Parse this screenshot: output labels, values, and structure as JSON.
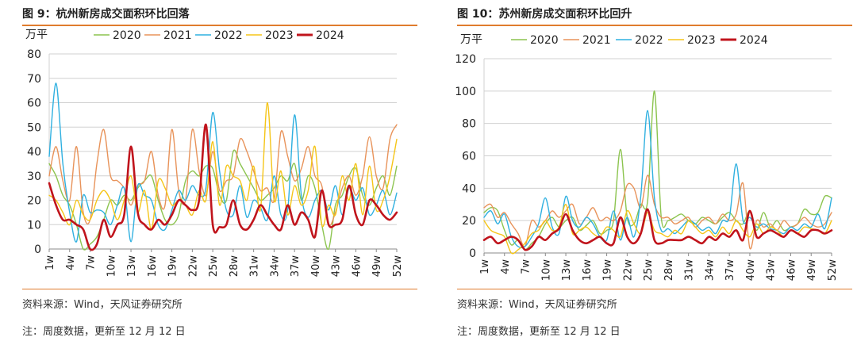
{
  "figures": [
    {
      "title": "图 9：杭州新房成交面积环比回落",
      "source": "资料来源：Wind，天风证券研究所",
      "note": "注：周度数据，更新至 12 月 12 日"
    },
    {
      "title": "图 10：苏州新房成交面积环比回升",
      "source": "资料来源：Wind，天风证券研究所",
      "note": "注：周度数据，更新至 12 月 12 日"
    }
  ],
  "colors": {
    "2020": "#8cc44f",
    "2021": "#e8935a",
    "2022": "#2fb0e0",
    "2023": "#f5c518",
    "2024": "#c0141c",
    "rule": "#e07c2e",
    "grid": "#d0d0d0"
  },
  "chart_data": [
    {
      "type": "line",
      "unit_label": "万平",
      "ylim": [
        0,
        80
      ],
      "yticks": [
        0,
        10,
        20,
        30,
        40,
        50,
        60,
        70,
        80
      ],
      "grid": true,
      "legend_position": "top",
      "xticks": [
        "1w",
        "4w",
        "7w",
        "10w",
        "13w",
        "16w",
        "19w",
        "22w",
        "25w",
        "28w",
        "31w",
        "34w",
        "37w",
        "40w",
        "43w",
        "46w",
        "49w",
        "52w"
      ],
      "x": [
        1,
        2,
        3,
        4,
        5,
        6,
        7,
        8,
        9,
        10,
        11,
        12,
        13,
        14,
        15,
        16,
        17,
        18,
        19,
        20,
        21,
        22,
        23,
        24,
        25,
        26,
        27,
        28,
        29,
        30,
        31,
        32,
        33,
        34,
        35,
        36,
        37,
        38,
        39,
        40,
        41,
        42,
        43,
        44,
        45,
        46,
        47,
        48,
        49,
        50,
        51,
        52
      ],
      "series": [
        {
          "name": "2020",
          "values": [
            35,
            30,
            22,
            18,
            10,
            0,
            2,
            5,
            12,
            20,
            18,
            22,
            20,
            25,
            28,
            30,
            20,
            12,
            10,
            14,
            28,
            32,
            30,
            34,
            33,
            22,
            20,
            40,
            35,
            30,
            25,
            20,
            22,
            25,
            30,
            28,
            35,
            20,
            30,
            25,
            10,
            0,
            18,
            22,
            30,
            33,
            22,
            18,
            25,
            30,
            22,
            34
          ]
        },
        {
          "name": "2021",
          "values": [
            30,
            42,
            28,
            20,
            42,
            15,
            12,
            35,
            49,
            30,
            28,
            25,
            18,
            26,
            28,
            40,
            22,
            18,
            49,
            24,
            20,
            49,
            32,
            22,
            40,
            24,
            28,
            30,
            45,
            40,
            32,
            24,
            25,
            20,
            48,
            38,
            28,
            33,
            42,
            30,
            26,
            10,
            15,
            25,
            30,
            22,
            30,
            46,
            30,
            25,
            45,
            51
          ]
        },
        {
          "name": "2022",
          "values": [
            38,
            68,
            35,
            15,
            3,
            22,
            15,
            16,
            15,
            10,
            18,
            25,
            3,
            26,
            22,
            20,
            10,
            8,
            16,
            24,
            20,
            26,
            22,
            25,
            56,
            32,
            16,
            14,
            26,
            13,
            20,
            17,
            12,
            30,
            14,
            16,
            55,
            22,
            13,
            20,
            24,
            16,
            26,
            14,
            25,
            20,
            25,
            14,
            18,
            24,
            14,
            23
          ]
        },
        {
          "name": "2023",
          "values": [
            22,
            20,
            15,
            10,
            20,
            14,
            12,
            20,
            24,
            20,
            12,
            20,
            30,
            15,
            24,
            8,
            28,
            25,
            18,
            20,
            18,
            14,
            24,
            20,
            44,
            18,
            34,
            30,
            28,
            20,
            34,
            16,
            60,
            20,
            32,
            14,
            26,
            18,
            24,
            42,
            10,
            18,
            14,
            30,
            20,
            35,
            14,
            34,
            16,
            20,
            30,
            45
          ]
        },
        {
          "name": "2024",
          "values": [
            27,
            18,
            12,
            12,
            10,
            8,
            0,
            2,
            12,
            5,
            10,
            14,
            42,
            15,
            10,
            8,
            12,
            10,
            14,
            20,
            18,
            16,
            20,
            51,
            10,
            9,
            10,
            20,
            10,
            8,
            12,
            18,
            14,
            10,
            8,
            18,
            10,
            15,
            12,
            5,
            24,
            10,
            10,
            12,
            26,
            14,
            10,
            20,
            18,
            14,
            12,
            15
          ]
        }
      ]
    },
    {
      "type": "line",
      "unit_label": "万平",
      "ylim": [
        0,
        120
      ],
      "yticks": [
        0,
        20,
        40,
        60,
        80,
        100,
        120
      ],
      "grid": true,
      "legend_position": "top",
      "xticks": [
        "1w",
        "4w",
        "7w",
        "10w",
        "13w",
        "16w",
        "19w",
        "22w",
        "25w",
        "28w",
        "31w",
        "34w",
        "37w",
        "40w",
        "43w",
        "46w",
        "49w",
        "52w"
      ],
      "x": [
        1,
        2,
        3,
        4,
        5,
        6,
        7,
        8,
        9,
        10,
        11,
        12,
        13,
        14,
        15,
        16,
        17,
        18,
        19,
        20,
        21,
        22,
        23,
        24,
        25,
        26,
        27,
        28,
        29,
        30,
        31,
        32,
        33,
        34,
        35,
        36,
        37,
        38,
        39,
        40,
        41,
        42,
        43,
        44,
        45,
        46,
        47,
        48,
        49,
        50,
        51,
        52
      ],
      "series": [
        {
          "name": "2020",
          "values": [
            25,
            28,
            26,
            14,
            5,
            8,
            2,
            6,
            10,
            18,
            22,
            16,
            20,
            22,
            14,
            17,
            20,
            12,
            14,
            20,
            64,
            22,
            18,
            30,
            32,
            100,
            22,
            20,
            22,
            24,
            20,
            18,
            22,
            20,
            18,
            22,
            25,
            20,
            18,
            26,
            14,
            25,
            16,
            20,
            14,
            16,
            18,
            27,
            24,
            25,
            35,
            34
          ]
        },
        {
          "name": "2021",
          "values": [
            28,
            30,
            22,
            25,
            18,
            12,
            4,
            20,
            16,
            20,
            26,
            22,
            26,
            30,
            18,
            22,
            28,
            20,
            22,
            20,
            26,
            42,
            40,
            28,
            48,
            30,
            22,
            22,
            18,
            20,
            22,
            16,
            20,
            22,
            18,
            24,
            20,
            24,
            43,
            3,
            20,
            16,
            18,
            14,
            20,
            16,
            18,
            22,
            18,
            16,
            18,
            25
          ]
        },
        {
          "name": "2022",
          "values": [
            22,
            26,
            18,
            24,
            10,
            4,
            4,
            10,
            18,
            34,
            16,
            12,
            35,
            20,
            16,
            22,
            18,
            10,
            8,
            26,
            8,
            22,
            10,
            35,
            88,
            34,
            14,
            15,
            12,
            16,
            20,
            18,
            14,
            16,
            12,
            20,
            22,
            55,
            20,
            22,
            16,
            18,
            15,
            14,
            12,
            16,
            14,
            18,
            16,
            24,
            15,
            34
          ]
        },
        {
          "name": "2023",
          "values": [
            20,
            14,
            12,
            10,
            0,
            2,
            6,
            12,
            14,
            20,
            14,
            16,
            30,
            12,
            14,
            16,
            12,
            10,
            16,
            14,
            10,
            26,
            18,
            12,
            25,
            14,
            12,
            10,
            14,
            12,
            20,
            16,
            12,
            14,
            10,
            16,
            12,
            20,
            14,
            10,
            18,
            12,
            16,
            14,
            10,
            14,
            12,
            16,
            15,
            14,
            12,
            20
          ]
        },
        {
          "name": "2024",
          "values": [
            8,
            10,
            6,
            8,
            10,
            8,
            2,
            4,
            10,
            8,
            12,
            15,
            24,
            14,
            8,
            6,
            8,
            10,
            6,
            6,
            22,
            10,
            6,
            12,
            27,
            8,
            6,
            8,
            8,
            8,
            10,
            8,
            6,
            10,
            8,
            12,
            10,
            14,
            8,
            26,
            10,
            12,
            14,
            12,
            10,
            14,
            12,
            10,
            14,
            14,
            12,
            14
          ]
        }
      ]
    }
  ]
}
